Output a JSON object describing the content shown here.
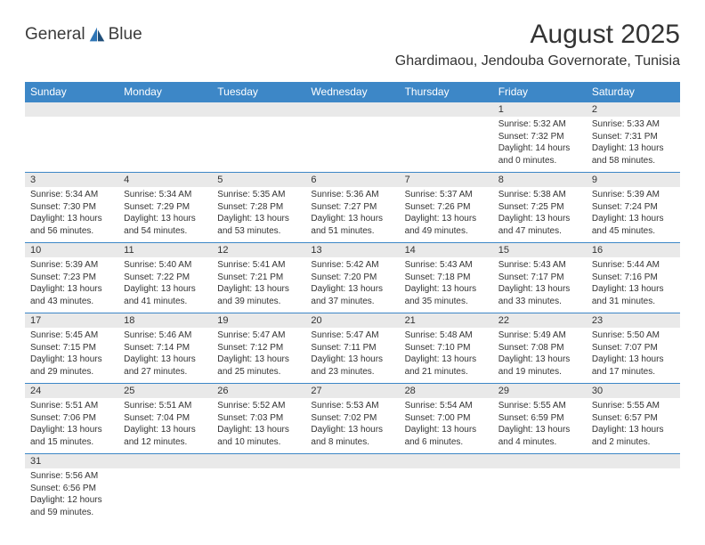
{
  "logo": {
    "text_general": "General",
    "text_blue": "Blue"
  },
  "title": {
    "month": "August 2025",
    "location": "Ghardimaou, Jendouba Governorate, Tunisia"
  },
  "colors": {
    "header_bg": "#3d87c7",
    "header_text": "#ffffff",
    "daynum_bg": "#e9e9e9",
    "border": "#3d87c7",
    "body_text": "#333333",
    "logo_blue": "#2e75b6"
  },
  "weekdays": [
    "Sunday",
    "Monday",
    "Tuesday",
    "Wednesday",
    "Thursday",
    "Friday",
    "Saturday"
  ],
  "weeks": [
    [
      null,
      null,
      null,
      null,
      null,
      {
        "n": "1",
        "sr": "5:32 AM",
        "ss": "7:32 PM",
        "dl": "14 hours and 0 minutes."
      },
      {
        "n": "2",
        "sr": "5:33 AM",
        "ss": "7:31 PM",
        "dl": "13 hours and 58 minutes."
      }
    ],
    [
      {
        "n": "3",
        "sr": "5:34 AM",
        "ss": "7:30 PM",
        "dl": "13 hours and 56 minutes."
      },
      {
        "n": "4",
        "sr": "5:34 AM",
        "ss": "7:29 PM",
        "dl": "13 hours and 54 minutes."
      },
      {
        "n": "5",
        "sr": "5:35 AM",
        "ss": "7:28 PM",
        "dl": "13 hours and 53 minutes."
      },
      {
        "n": "6",
        "sr": "5:36 AM",
        "ss": "7:27 PM",
        "dl": "13 hours and 51 minutes."
      },
      {
        "n": "7",
        "sr": "5:37 AM",
        "ss": "7:26 PM",
        "dl": "13 hours and 49 minutes."
      },
      {
        "n": "8",
        "sr": "5:38 AM",
        "ss": "7:25 PM",
        "dl": "13 hours and 47 minutes."
      },
      {
        "n": "9",
        "sr": "5:39 AM",
        "ss": "7:24 PM",
        "dl": "13 hours and 45 minutes."
      }
    ],
    [
      {
        "n": "10",
        "sr": "5:39 AM",
        "ss": "7:23 PM",
        "dl": "13 hours and 43 minutes."
      },
      {
        "n": "11",
        "sr": "5:40 AM",
        "ss": "7:22 PM",
        "dl": "13 hours and 41 minutes."
      },
      {
        "n": "12",
        "sr": "5:41 AM",
        "ss": "7:21 PM",
        "dl": "13 hours and 39 minutes."
      },
      {
        "n": "13",
        "sr": "5:42 AM",
        "ss": "7:20 PM",
        "dl": "13 hours and 37 minutes."
      },
      {
        "n": "14",
        "sr": "5:43 AM",
        "ss": "7:18 PM",
        "dl": "13 hours and 35 minutes."
      },
      {
        "n": "15",
        "sr": "5:43 AM",
        "ss": "7:17 PM",
        "dl": "13 hours and 33 minutes."
      },
      {
        "n": "16",
        "sr": "5:44 AM",
        "ss": "7:16 PM",
        "dl": "13 hours and 31 minutes."
      }
    ],
    [
      {
        "n": "17",
        "sr": "5:45 AM",
        "ss": "7:15 PM",
        "dl": "13 hours and 29 minutes."
      },
      {
        "n": "18",
        "sr": "5:46 AM",
        "ss": "7:14 PM",
        "dl": "13 hours and 27 minutes."
      },
      {
        "n": "19",
        "sr": "5:47 AM",
        "ss": "7:12 PM",
        "dl": "13 hours and 25 minutes."
      },
      {
        "n": "20",
        "sr": "5:47 AM",
        "ss": "7:11 PM",
        "dl": "13 hours and 23 minutes."
      },
      {
        "n": "21",
        "sr": "5:48 AM",
        "ss": "7:10 PM",
        "dl": "13 hours and 21 minutes."
      },
      {
        "n": "22",
        "sr": "5:49 AM",
        "ss": "7:08 PM",
        "dl": "13 hours and 19 minutes."
      },
      {
        "n": "23",
        "sr": "5:50 AM",
        "ss": "7:07 PM",
        "dl": "13 hours and 17 minutes."
      }
    ],
    [
      {
        "n": "24",
        "sr": "5:51 AM",
        "ss": "7:06 PM",
        "dl": "13 hours and 15 minutes."
      },
      {
        "n": "25",
        "sr": "5:51 AM",
        "ss": "7:04 PM",
        "dl": "13 hours and 12 minutes."
      },
      {
        "n": "26",
        "sr": "5:52 AM",
        "ss": "7:03 PM",
        "dl": "13 hours and 10 minutes."
      },
      {
        "n": "27",
        "sr": "5:53 AM",
        "ss": "7:02 PM",
        "dl": "13 hours and 8 minutes."
      },
      {
        "n": "28",
        "sr": "5:54 AM",
        "ss": "7:00 PM",
        "dl": "13 hours and 6 minutes."
      },
      {
        "n": "29",
        "sr": "5:55 AM",
        "ss": "6:59 PM",
        "dl": "13 hours and 4 minutes."
      },
      {
        "n": "30",
        "sr": "5:55 AM",
        "ss": "6:57 PM",
        "dl": "13 hours and 2 minutes."
      }
    ],
    [
      {
        "n": "31",
        "sr": "5:56 AM",
        "ss": "6:56 PM",
        "dl": "12 hours and 59 minutes."
      },
      null,
      null,
      null,
      null,
      null,
      null
    ]
  ],
  "labels": {
    "sunrise": "Sunrise:",
    "sunset": "Sunset:",
    "daylight": "Daylight:"
  }
}
